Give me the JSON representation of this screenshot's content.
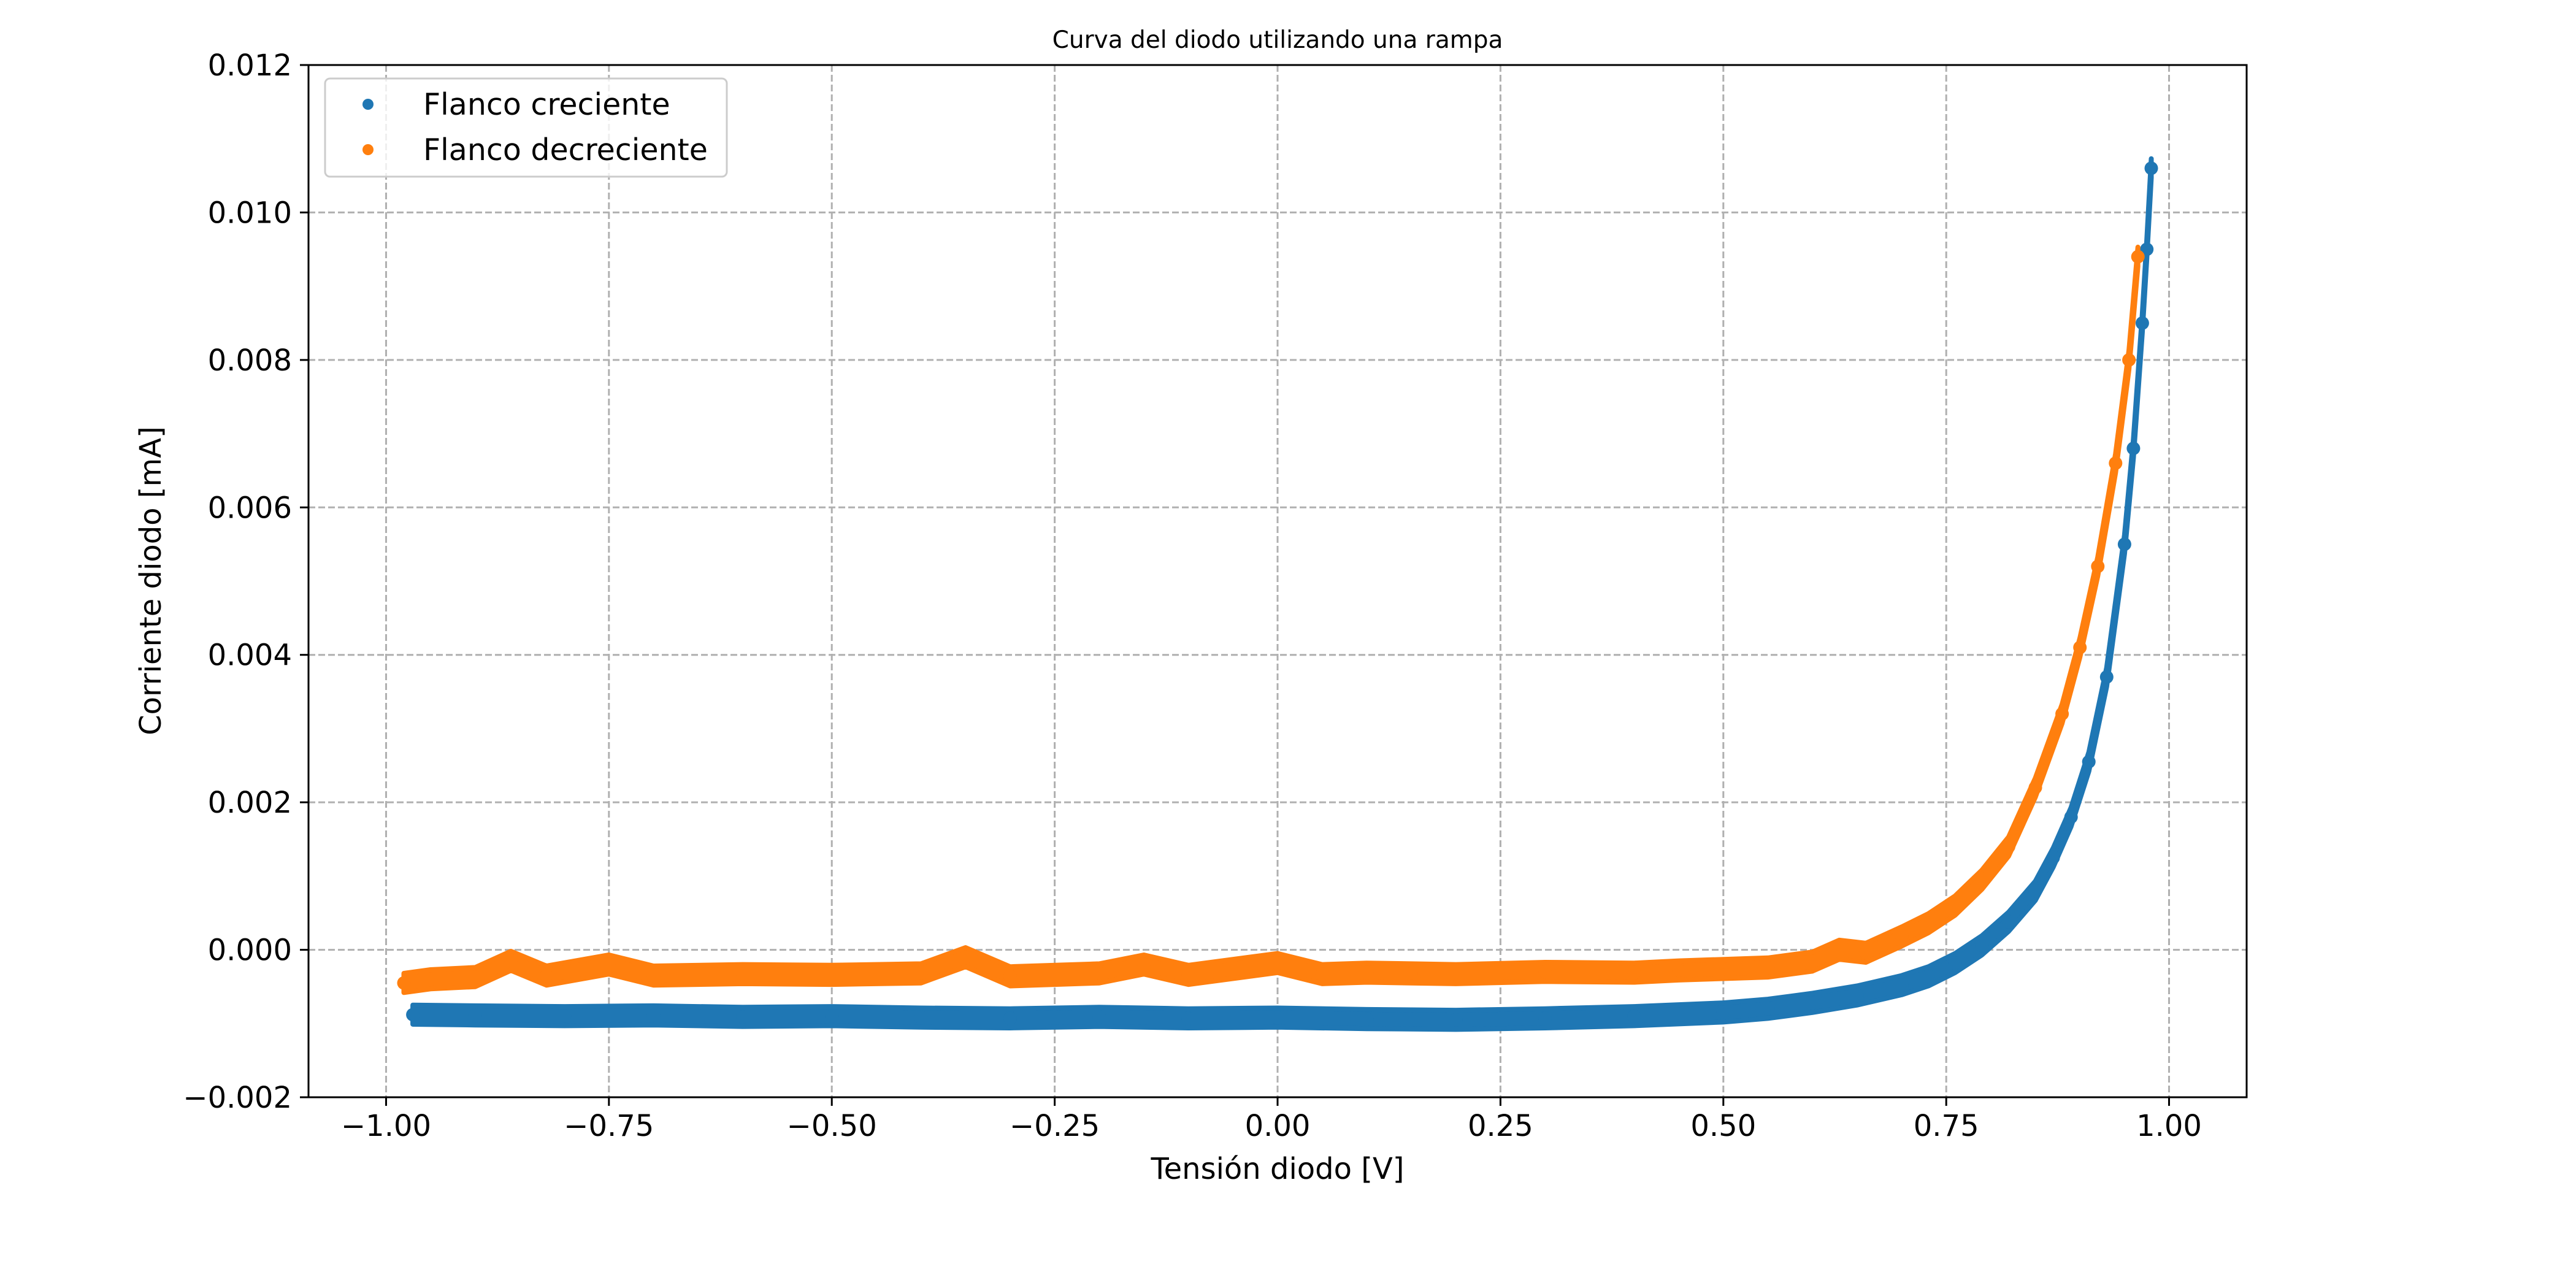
{
  "chart_data": {
    "type": "scatter",
    "title": "Curva del diodo utilizando una rampa",
    "xlabel": "Tensión diodo [V]",
    "ylabel": "Corriente diodo [mA]",
    "xlim": [
      -1.087,
      1.087
    ],
    "ylim": [
      -0.002,
      0.012
    ],
    "grid": true,
    "legend_position": "upper-left",
    "x_ticks": [
      -1.0,
      -0.75,
      -0.5,
      -0.25,
      0.0,
      0.25,
      0.5,
      0.75,
      1.0
    ],
    "x_tick_labels": [
      "−1.00",
      "−0.75",
      "−0.50",
      "−0.25",
      "0.00",
      "0.25",
      "0.50",
      "0.75",
      "1.00"
    ],
    "y_ticks": [
      -0.002,
      0.0,
      0.002,
      0.004,
      0.006,
      0.008,
      0.01,
      0.012
    ],
    "y_tick_labels": [
      "−0.002",
      "0.000",
      "0.002",
      "0.004",
      "0.006",
      "0.008",
      "0.010",
      "0.012"
    ],
    "series": [
      {
        "name": "Flanco creciente",
        "color": "#1f77b4",
        "x": [
          -0.97,
          -0.9,
          -0.8,
          -0.7,
          -0.6,
          -0.5,
          -0.4,
          -0.3,
          -0.2,
          -0.1,
          0.0,
          0.1,
          0.2,
          0.3,
          0.4,
          0.5,
          0.55,
          0.6,
          0.65,
          0.7,
          0.73,
          0.76,
          0.79,
          0.82,
          0.85,
          0.87,
          0.89,
          0.91,
          0.93,
          0.95,
          0.96,
          0.97,
          0.975,
          0.98
        ],
        "y": [
          -0.00088,
          -0.00089,
          -0.0009,
          -0.00089,
          -0.00091,
          -0.0009,
          -0.00092,
          -0.00093,
          -0.00091,
          -0.00093,
          -0.00092,
          -0.00094,
          -0.00095,
          -0.00093,
          -0.0009,
          -0.00085,
          -0.0008,
          -0.00072,
          -0.00062,
          -0.00048,
          -0.00036,
          -0.00018,
          6e-05,
          0.00038,
          0.0008,
          0.00125,
          0.0018,
          0.00255,
          0.0037,
          0.0055,
          0.0068,
          0.0085,
          0.0095,
          0.0106
        ],
        "spread": 0.00013
      },
      {
        "name": "Flanco decreciente",
        "color": "#ff7f0e",
        "x": [
          -0.98,
          -0.95,
          -0.9,
          -0.86,
          -0.82,
          -0.75,
          -0.7,
          -0.6,
          -0.5,
          -0.4,
          -0.35,
          -0.3,
          -0.2,
          -0.15,
          -0.1,
          0.0,
          0.05,
          0.1,
          0.15,
          0.2,
          0.3,
          0.4,
          0.45,
          0.5,
          0.55,
          0.6,
          0.63,
          0.66,
          0.7,
          0.73,
          0.76,
          0.79,
          0.82,
          0.85,
          0.88,
          0.9,
          0.92,
          0.94,
          0.955,
          0.965
        ],
        "y": [
          -0.00045,
          -0.0004,
          -0.00037,
          -0.00015,
          -0.00035,
          -0.0002,
          -0.00035,
          -0.00033,
          -0.00034,
          -0.00032,
          -0.0001,
          -0.00036,
          -0.00032,
          -0.0002,
          -0.00034,
          -0.00018,
          -0.00033,
          -0.00031,
          -0.00032,
          -0.00033,
          -0.0003,
          -0.00031,
          -0.00028,
          -0.00026,
          -0.00024,
          -0.00016,
          0.0,
          -4e-05,
          0.00018,
          0.00036,
          0.0006,
          0.00095,
          0.0014,
          0.0022,
          0.0032,
          0.0041,
          0.0052,
          0.0066,
          0.008,
          0.0094
        ],
        "spread": 0.00013
      }
    ]
  }
}
